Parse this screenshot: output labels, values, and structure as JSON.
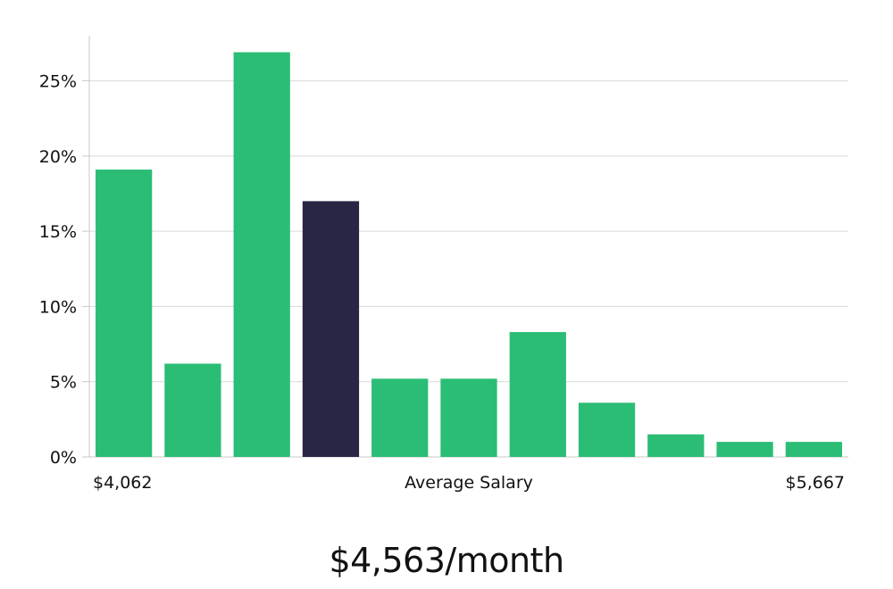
{
  "chart_data": {
    "type": "bar",
    "bins": 11,
    "values": [
      19.1,
      6.2,
      26.9,
      17.0,
      5.2,
      5.2,
      8.3,
      3.6,
      1.5,
      1.0,
      1.0
    ],
    "highlight_index": 3,
    "ylim": [
      0,
      28
    ],
    "yticks": [
      0,
      5,
      10,
      15,
      20,
      25
    ],
    "ytick_labels": [
      "0%",
      "5%",
      "10%",
      "15%",
      "20%",
      "25%"
    ],
    "x_min_label": "$4,062",
    "x_max_label": "$5,667",
    "xlabel": "Average Salary",
    "grid": true,
    "colors": {
      "bar": "#2bbd75",
      "highlight": "#282545",
      "grid": "#d9d9d9",
      "axis": "#c8c8c8",
      "text": "#111111"
    }
  },
  "salary_label": "$4,563/month"
}
